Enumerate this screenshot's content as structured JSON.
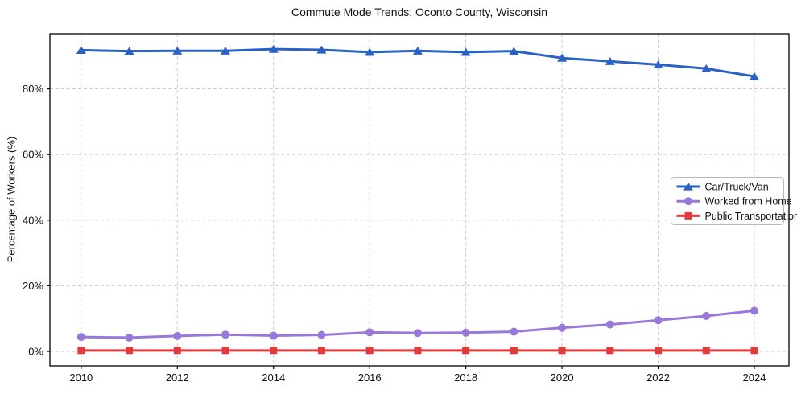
{
  "figure": {
    "title": "Commute Mode Trends: Oconto County, Wisconsin",
    "background_color": "#ffffff",
    "spine_color": "#000000",
    "grid_color": "#cccccc",
    "text_color": "#111111"
  },
  "chart_data": {
    "type": "line",
    "title": "Commute Mode Trends: Oconto County, Wisconsin",
    "xlabel": "",
    "ylabel": "Percentage of Workers (%)",
    "x": [
      2010,
      2011,
      2012,
      2013,
      2014,
      2015,
      2016,
      2017,
      2018,
      2019,
      2020,
      2021,
      2022,
      2023,
      2024
    ],
    "series": [
      {
        "name": "Car/Truck/Van",
        "color": "#2a62c4",
        "marker": "triangle",
        "values": [
          91.8,
          91.5,
          91.6,
          91.6,
          92.1,
          91.9,
          91.2,
          91.6,
          91.2,
          91.5,
          89.4,
          88.4,
          87.4,
          86.2,
          83.8
        ]
      },
      {
        "name": "Worked from Home",
        "color": "#9878d8",
        "marker": "circle",
        "values": [
          4.4,
          4.2,
          4.7,
          5.1,
          4.8,
          5.0,
          5.8,
          5.6,
          5.7,
          6.0,
          7.2,
          8.2,
          9.5,
          10.8,
          12.4
        ]
      },
      {
        "name": "Public Transportation",
        "color": "#e03c3c",
        "marker": "square",
        "values": [
          0.3,
          0.3,
          0.3,
          0.3,
          0.3,
          0.3,
          0.3,
          0.3,
          0.3,
          0.3,
          0.3,
          0.3,
          0.3,
          0.3,
          0.3
        ]
      }
    ],
    "xticks": [
      2010,
      2012,
      2014,
      2016,
      2018,
      2020,
      2022,
      2024
    ],
    "yticks": [
      0,
      20,
      40,
      60,
      80
    ],
    "ytick_suffix": "%",
    "xlim": [
      2009.35,
      2024.72
    ],
    "ylim": [
      -4.4,
      96.8
    ],
    "grid": true,
    "grid_style": "dashed",
    "legend_position": "center-right",
    "legend_entries": [
      "Car/Truck/Van",
      "Worked from Home",
      "Public Transportation"
    ]
  }
}
